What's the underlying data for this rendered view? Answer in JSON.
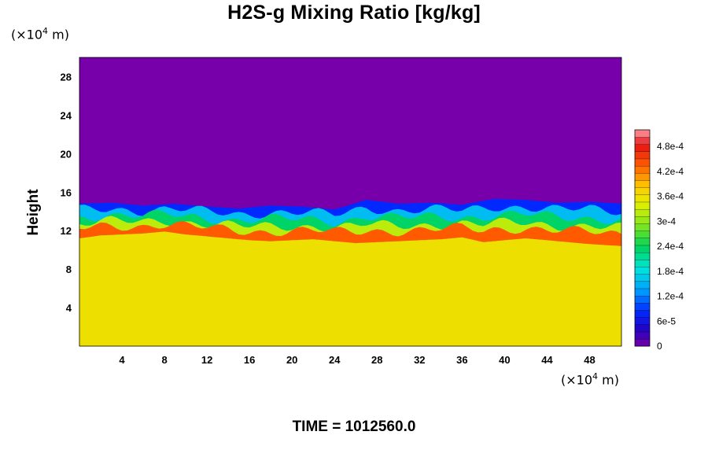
{
  "chart_data": {
    "type": "heatmap",
    "title": "H2S-g Mixing Ratio [kg/kg]",
    "ylabel": "Height",
    "xlabel": "",
    "x_unit": {
      "prefix": "(×10",
      "exp": "4",
      "suffix": " m)"
    },
    "y_unit": {
      "prefix": "(×10",
      "exp": "4",
      "suffix": " m)"
    },
    "xlim": [
      0,
      51
    ],
    "ylim": [
      0,
      30
    ],
    "x_ticks": [
      4,
      8,
      12,
      16,
      20,
      24,
      28,
      32,
      36,
      40,
      44,
      48
    ],
    "y_ticks": [
      4,
      8,
      12,
      16,
      20,
      24,
      28
    ],
    "grid": false,
    "colorbar": {
      "range": [
        0,
        0.00052
      ],
      "tick_values": [
        0,
        6e-05,
        0.00012,
        0.00018,
        0.00024,
        0.0003,
        0.00036,
        0.00042,
        0.00048
      ],
      "tick_labels": [
        "0",
        "6e-5",
        "1.2e-4",
        "1.8e-4",
        "2.4e-4",
        "3e-4",
        "3.6e-4",
        "4.2e-4",
        "4.8e-4"
      ]
    },
    "regions": {
      "upper_value": 0,
      "lower_value": 0.00036,
      "interface_height": [
        [
          0,
          11.2
        ],
        [
          2,
          11.5
        ],
        [
          4,
          11.6
        ],
        [
          6,
          11.7
        ],
        [
          8,
          11.9
        ],
        [
          10,
          11.6
        ],
        [
          12,
          11.4
        ],
        [
          14,
          11.2
        ],
        [
          16,
          11.0
        ],
        [
          18,
          10.9
        ],
        [
          20,
          11.0
        ],
        [
          22,
          11.1
        ],
        [
          24,
          10.9
        ],
        [
          26,
          10.7
        ],
        [
          28,
          10.8
        ],
        [
          30,
          10.9
        ],
        [
          32,
          11.0
        ],
        [
          34,
          11.1
        ],
        [
          36,
          11.3
        ],
        [
          38,
          10.8
        ],
        [
          40,
          11.0
        ],
        [
          42,
          11.2
        ],
        [
          44,
          11.0
        ],
        [
          46,
          10.8
        ],
        [
          48,
          10.6
        ],
        [
          51,
          10.4
        ]
      ],
      "mixing_layer_top": [
        [
          0,
          14.8
        ],
        [
          3,
          14.9
        ],
        [
          6,
          14.6
        ],
        [
          9,
          14.8
        ],
        [
          12,
          14.5
        ],
        [
          15,
          14.3
        ],
        [
          18,
          14.6
        ],
        [
          21,
          14.5
        ],
        [
          24,
          14.2
        ],
        [
          27,
          15.2
        ],
        [
          30,
          14.8
        ],
        [
          33,
          14.9
        ],
        [
          36,
          14.7
        ],
        [
          39,
          15.3
        ],
        [
          42,
          15.2
        ],
        [
          45,
          14.9
        ],
        [
          48,
          15.0
        ],
        [
          51,
          14.8
        ]
      ]
    }
  },
  "time_label": "TIME = 1012560.0"
}
